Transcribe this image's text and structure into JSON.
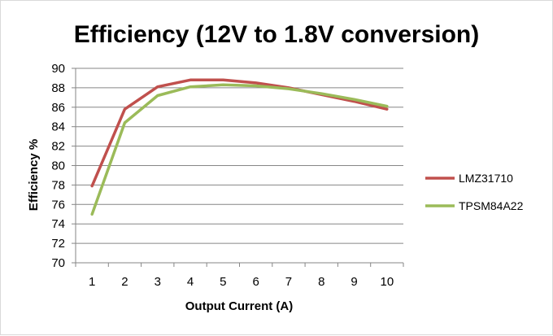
{
  "chart_data": {
    "type": "line",
    "title": "Efficiency (12V to 1.8V conversion)",
    "xlabel": "Output Current (A)",
    "ylabel": "Efficiency %",
    "x": [
      1,
      2,
      3,
      4,
      5,
      6,
      7,
      8,
      9,
      10
    ],
    "x_ticks": [
      "1",
      "2",
      "3",
      "4",
      "5",
      "6",
      "7",
      "8",
      "9",
      "10"
    ],
    "y_ticks": [
      "70",
      "72",
      "74",
      "76",
      "78",
      "80",
      "82",
      "84",
      "86",
      "88",
      "90"
    ],
    "ylim": [
      70,
      90
    ],
    "grid": true,
    "legend_position": "right",
    "series": [
      {
        "name": "LMZ31710",
        "color": "#c0504d",
        "values": [
          77.9,
          85.8,
          88.1,
          88.8,
          88.8,
          88.5,
          88.0,
          87.3,
          86.6,
          85.8
        ]
      },
      {
        "name": "TPSM84A22",
        "color": "#9bbb59",
        "values": [
          75.0,
          84.4,
          87.2,
          88.1,
          88.3,
          88.2,
          87.9,
          87.4,
          86.8,
          86.1
        ]
      }
    ]
  }
}
